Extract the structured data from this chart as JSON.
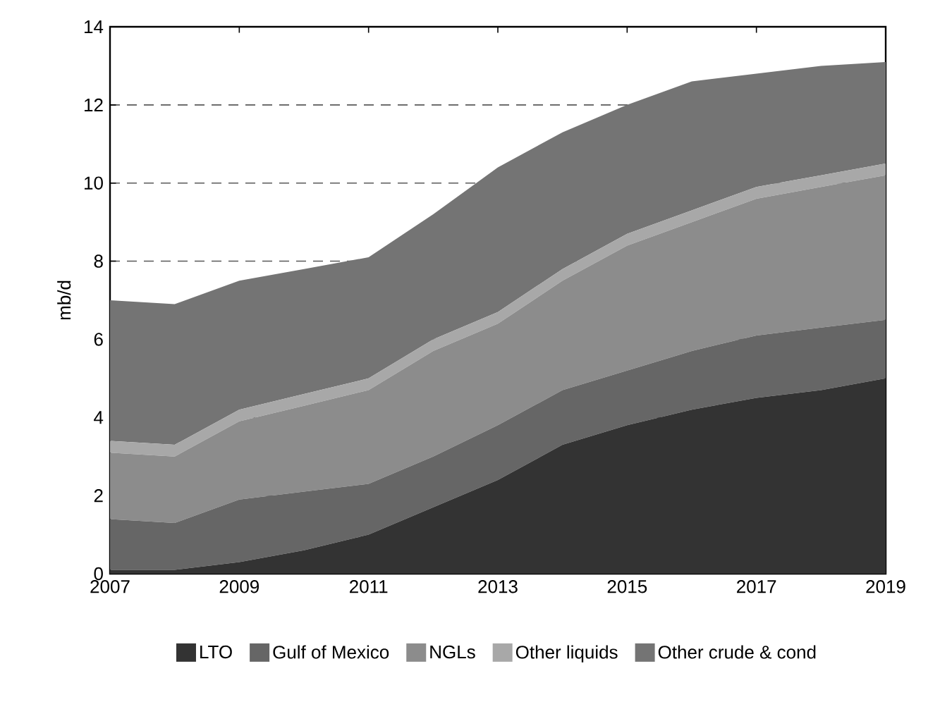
{
  "chart_data": {
    "type": "area",
    "stacked": true,
    "ylabel": "mb/d",
    "x": [
      2007,
      2008,
      2009,
      2010,
      2011,
      2012,
      2013,
      2014,
      2015,
      2016,
      2017,
      2018,
      2019
    ],
    "xlim": [
      2007,
      2019
    ],
    "xticks": [
      2007,
      2009,
      2011,
      2013,
      2015,
      2017,
      2019
    ],
    "ylim": [
      0,
      14
    ],
    "yticks": [
      0,
      2,
      4,
      6,
      8,
      10,
      12,
      14
    ],
    "grid": "y",
    "legend": "bottom",
    "series": [
      {
        "name": "LTO",
        "color": "#333333",
        "values": [
          0.1,
          0.1,
          0.3,
          0.6,
          1.0,
          1.7,
          2.4,
          3.3,
          3.8,
          4.2,
          4.5,
          4.7,
          5.0
        ]
      },
      {
        "name": "Gulf of Mexico",
        "color": "#666666",
        "values": [
          1.3,
          1.2,
          1.6,
          1.5,
          1.3,
          1.3,
          1.4,
          1.4,
          1.4,
          1.5,
          1.6,
          1.6,
          1.5
        ]
      },
      {
        "name": "NGLs",
        "color": "#8c8c8c",
        "values": [
          1.7,
          1.7,
          2.0,
          2.2,
          2.4,
          2.7,
          2.6,
          2.8,
          3.2,
          3.3,
          3.5,
          3.6,
          3.7
        ]
      },
      {
        "name": "Other liquids",
        "color": "#a8a8a8",
        "values": [
          0.3,
          0.3,
          0.3,
          0.3,
          0.3,
          0.3,
          0.3,
          0.3,
          0.3,
          0.3,
          0.3,
          0.3,
          0.3
        ]
      },
      {
        "name": "Other crude & cond",
        "color": "#747474",
        "values": [
          3.6,
          3.6,
          3.3,
          3.2,
          3.1,
          3.2,
          3.7,
          3.5,
          3.3,
          3.3,
          2.9,
          2.8,
          2.6
        ]
      }
    ]
  }
}
